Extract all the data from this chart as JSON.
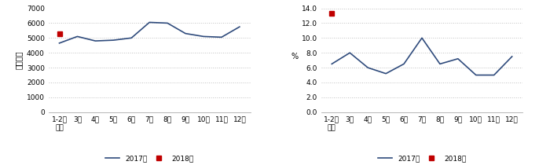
{
  "left": {
    "ylabel": "亿千瓦时",
    "ylim": [
      0,
      7000
    ],
    "yticks": [
      0,
      1000,
      2000,
      3000,
      4000,
      5000,
      6000,
      7000
    ],
    "ytick_labels": [
      "0",
      "1000",
      "2000",
      "3000",
      "4000",
      "5000",
      "6000",
      "7000"
    ],
    "line2017": [
      4650,
      5100,
      4800,
      4850,
      5000,
      6050,
      6000,
      5300,
      5100,
      5050,
      5750
    ],
    "line2018_x": [
      0
    ],
    "line2018_y": [
      5300
    ],
    "color2017": "#2F4B7C",
    "color2018": "#C00000"
  },
  "right": {
    "ylabel": "%",
    "ylim": [
      0.0,
      14.0
    ],
    "yticks": [
      0.0,
      2.0,
      4.0,
      6.0,
      8.0,
      10.0,
      12.0,
      14.0
    ],
    "ytick_labels": [
      "0.0",
      "2.0",
      "4.0",
      "6.0",
      "8.0",
      "10.0",
      "12.0",
      "14.0"
    ],
    "line2017": [
      6.5,
      8.0,
      6.0,
      5.2,
      6.5,
      10.0,
      6.5,
      7.2,
      5.0,
      5.0,
      7.5
    ],
    "line2018_x": [
      0
    ],
    "line2018_y": [
      13.3
    ],
    "color2017": "#2F4B7C",
    "color2018": "#C00000"
  },
  "xlabels_line1": [
    "1-2月",
    "3月",
    "4月",
    "5月",
    "6月",
    "7月",
    "8月",
    "9月",
    "10月",
    "11月",
    "12月"
  ],
  "xlabels_line2": [
    "平均",
    "",
    "",
    "",
    "",
    "",
    "",
    "",
    "",
    "",
    ""
  ],
  "legend_labels": [
    "2017年",
    "2018年"
  ],
  "grid_color": "#C0C0C0",
  "grid_linestyle": ":",
  "line_width": 1.2,
  "marker_size_2018": 5,
  "bg_color": "#FFFFFF"
}
